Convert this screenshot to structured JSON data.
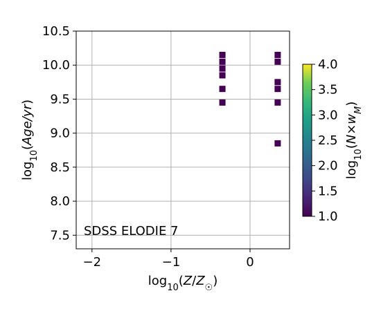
{
  "chart_data": {
    "type": "heatmap",
    "title": "",
    "annotation": "SDSS ELODIE 7",
    "xlabel": "log10(Z/Z☉)",
    "ylabel": "log10(Age/yr)",
    "xlim": [
      -2.2,
      0.5
    ],
    "ylim": [
      7.3,
      10.5
    ],
    "x_ticks": [
      -2,
      -1,
      0
    ],
    "x_tick_labels": [
      "−2",
      "−1",
      "0"
    ],
    "y_ticks": [
      7.5,
      8.0,
      8.5,
      9.0,
      9.5,
      10.0,
      10.5
    ],
    "y_tick_labels": [
      "7.5",
      "8.0",
      "8.5",
      "9.0",
      "9.5",
      "10.0",
      "10.5"
    ],
    "grid": true,
    "cells": [
      {
        "x": -0.35,
        "y": 10.15,
        "value": 1.0
      },
      {
        "x": -0.35,
        "y": 10.05,
        "value": 1.0
      },
      {
        "x": -0.35,
        "y": 9.95,
        "value": 1.0
      },
      {
        "x": -0.35,
        "y": 9.85,
        "value": 1.0
      },
      {
        "x": -0.35,
        "y": 9.65,
        "value": 1.0
      },
      {
        "x": -0.35,
        "y": 9.45,
        "value": 1.0
      },
      {
        "x": 0.35,
        "y": 10.15,
        "value": 1.0
      },
      {
        "x": 0.35,
        "y": 10.05,
        "value": 1.0
      },
      {
        "x": 0.35,
        "y": 9.75,
        "value": 1.0
      },
      {
        "x": 0.35,
        "y": 9.65,
        "value": 1.0
      },
      {
        "x": 0.35,
        "y": 9.45,
        "value": 1.0
      },
      {
        "x": 0.35,
        "y": 8.85,
        "value": 1.0
      }
    ],
    "colorbar": {
      "label": "log10(N×wM)",
      "colormap": "viridis",
      "range": [
        1.0,
        4.0
      ],
      "ticks": [
        1.0,
        1.5,
        2.0,
        2.5,
        3.0,
        3.5,
        4.0
      ],
      "tick_labels": [
        "1.0",
        "1.5",
        "2.0",
        "2.5",
        "3.0",
        "3.5",
        "4.0"
      ]
    }
  }
}
